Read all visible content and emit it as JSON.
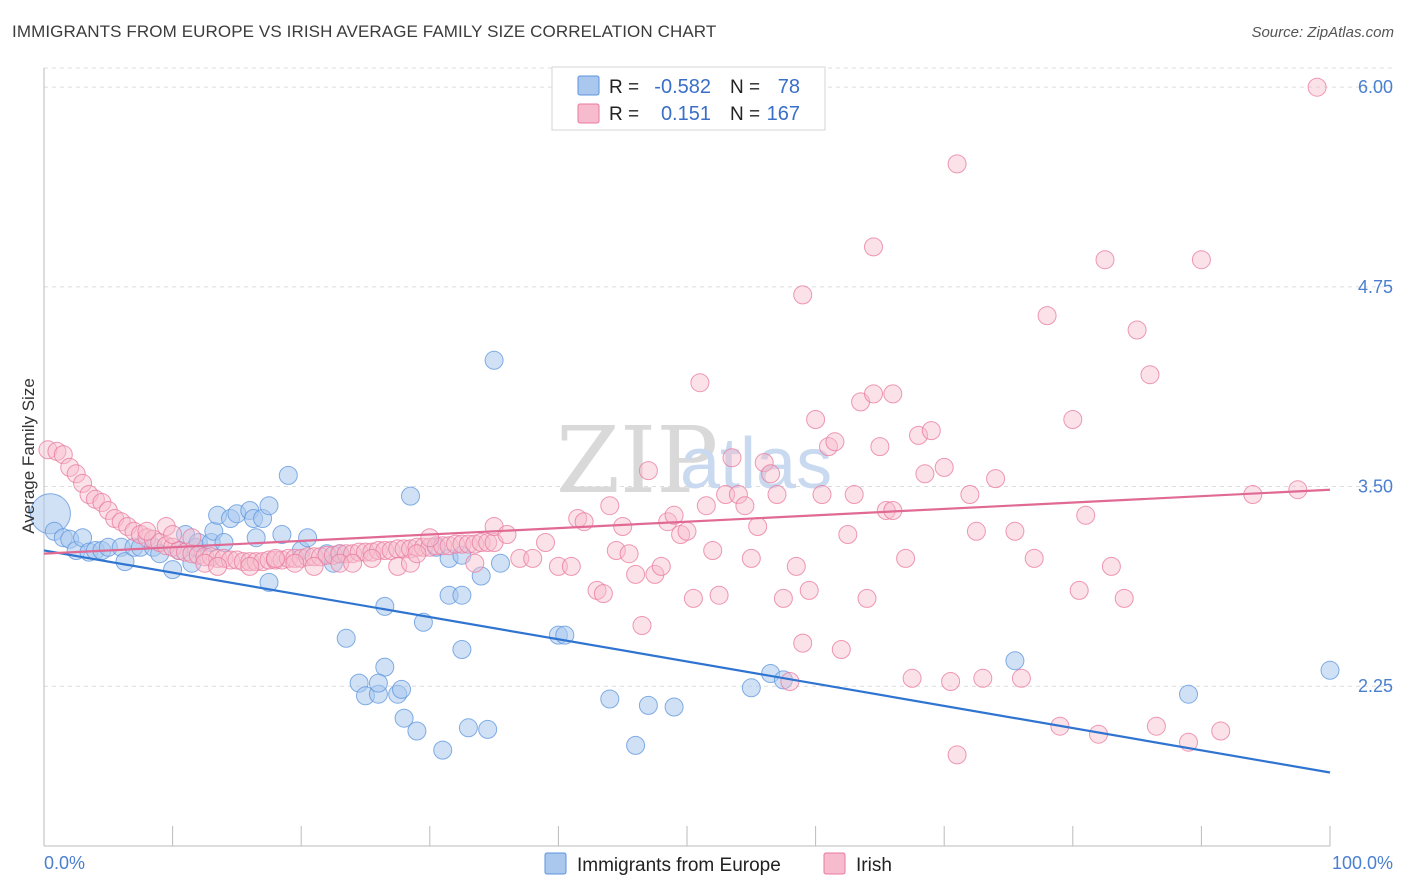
{
  "title": "IMMIGRANTS FROM EUROPE VS IRISH AVERAGE FAMILY SIZE CORRELATION CHART",
  "source": "Source: ZipAtlas.com",
  "watermark": {
    "zip": "ZIP",
    "atlas": "atlas"
  },
  "legend_top": [
    {
      "r_label": "R =",
      "r_value": "-0.582",
      "n_label": "N =",
      "n_value": "78",
      "color": "#8db5e8"
    },
    {
      "r_label": "R =",
      "r_value": "0.151",
      "n_label": "N =",
      "n_value": "167",
      "color": "#f4a9c0"
    }
  ],
  "chart_data": {
    "type": "scatter",
    "title": "IMMIGRANTS FROM EUROPE VS IRISH AVERAGE FAMILY SIZE CORRELATION CHART",
    "xlabel": "",
    "ylabel": "Average Family Size",
    "xlim": [
      0,
      100
    ],
    "ylim": [
      1.25,
      6.12
    ],
    "x_tick_labels": [
      "0.0%",
      "100.0%"
    ],
    "y_ticks": [
      2.25,
      3.5,
      4.75,
      6.0
    ],
    "y_tick_labels": [
      "2.25",
      "3.50",
      "4.75",
      "6.00"
    ],
    "grid": true,
    "legend_position": "bottom",
    "series": [
      {
        "name": "Immigrants from Europe",
        "color": "#5b94dc",
        "fill": "#aac8ee",
        "trend": {
          "x": [
            0,
            100
          ],
          "y": [
            3.1,
            1.71
          ]
        },
        "points": [
          [
            0.5,
            3.33
          ],
          [
            0.8,
            3.22
          ],
          [
            1.5,
            3.18
          ],
          [
            2.0,
            3.17
          ],
          [
            2.5,
            3.1
          ],
          [
            3.0,
            3.18
          ],
          [
            3.5,
            3.09
          ],
          [
            4.0,
            3.1
          ],
          [
            4.5,
            3.1
          ],
          [
            5.0,
            3.12
          ],
          [
            6.0,
            3.12
          ],
          [
            6.3,
            3.03
          ],
          [
            7.0,
            3.12
          ],
          [
            7.5,
            3.12
          ],
          [
            8.5,
            3.12
          ],
          [
            9.0,
            3.08
          ],
          [
            10.0,
            2.98
          ],
          [
            10.5,
            3.1
          ],
          [
            11.0,
            3.2
          ],
          [
            11.5,
            3.02
          ],
          [
            11.8,
            3.12
          ],
          [
            12.0,
            3.15
          ],
          [
            13.0,
            3.15
          ],
          [
            13.2,
            3.22
          ],
          [
            13.5,
            3.32
          ],
          [
            14.0,
            3.15
          ],
          [
            14.5,
            3.3
          ],
          [
            15.0,
            3.33
          ],
          [
            16.0,
            3.35
          ],
          [
            16.3,
            3.3
          ],
          [
            16.5,
            3.18
          ],
          [
            17.0,
            3.3
          ],
          [
            17.5,
            3.38
          ],
          [
            18.5,
            3.2
          ],
          [
            19.0,
            3.57
          ],
          [
            20.0,
            3.1
          ],
          [
            20.5,
            3.18
          ],
          [
            22.0,
            3.08
          ],
          [
            22.5,
            3.02
          ],
          [
            23.0,
            3.08
          ],
          [
            17.5,
            2.9
          ],
          [
            23.5,
            2.55
          ],
          [
            24.5,
            2.27
          ],
          [
            25.0,
            2.19
          ],
          [
            26.0,
            2.2
          ],
          [
            26.5,
            2.37
          ],
          [
            27.5,
            2.2
          ],
          [
            28.0,
            2.05
          ],
          [
            29.0,
            1.97
          ],
          [
            30.5,
            3.12
          ],
          [
            31.5,
            3.05
          ],
          [
            32.5,
            3.07
          ],
          [
            26.0,
            2.27
          ],
          [
            26.5,
            2.75
          ],
          [
            27.8,
            2.23
          ],
          [
            28.5,
            3.44
          ],
          [
            29.5,
            2.65
          ],
          [
            31.0,
            1.85
          ],
          [
            31.5,
            2.82
          ],
          [
            32.5,
            2.82
          ],
          [
            32.5,
            2.48
          ],
          [
            33.0,
            1.99
          ],
          [
            34.0,
            2.94
          ],
          [
            34.5,
            1.98
          ],
          [
            35.0,
            4.29
          ],
          [
            35.5,
            3.02
          ],
          [
            40.0,
            2.57
          ],
          [
            40.5,
            2.57
          ],
          [
            44.0,
            2.17
          ],
          [
            46.0,
            1.88
          ],
          [
            47.0,
            2.13
          ],
          [
            49.0,
            2.12
          ],
          [
            55.0,
            2.24
          ],
          [
            56.5,
            2.33
          ],
          [
            57.5,
            2.29
          ],
          [
            75.5,
            2.41
          ],
          [
            89.0,
            2.2
          ],
          [
            100.0,
            2.35
          ]
        ]
      },
      {
        "name": "Irish",
        "color": "#e8789e",
        "fill": "#f6bccd",
        "trend": {
          "x": [
            0,
            100
          ],
          "y": [
            3.08,
            3.48
          ]
        },
        "points": [
          [
            0.3,
            3.73
          ],
          [
            1.0,
            3.72
          ],
          [
            1.5,
            3.7
          ],
          [
            2.0,
            3.62
          ],
          [
            2.5,
            3.58
          ],
          [
            3.0,
            3.52
          ],
          [
            3.5,
            3.45
          ],
          [
            4.0,
            3.42
          ],
          [
            4.5,
            3.4
          ],
          [
            5.0,
            3.35
          ],
          [
            5.5,
            3.3
          ],
          [
            6.0,
            3.28
          ],
          [
            6.5,
            3.25
          ],
          [
            7.0,
            3.22
          ],
          [
            7.5,
            3.2
          ],
          [
            8.0,
            3.18
          ],
          [
            8.5,
            3.17
          ],
          [
            9.0,
            3.15
          ],
          [
            9.5,
            3.13
          ],
          [
            10.0,
            3.12
          ],
          [
            10.5,
            3.1
          ],
          [
            11.0,
            3.09
          ],
          [
            11.5,
            3.08
          ],
          [
            12.0,
            3.07
          ],
          [
            12.5,
            3.06
          ],
          [
            13.0,
            3.06
          ],
          [
            13.5,
            3.05
          ],
          [
            14.0,
            3.05
          ],
          [
            14.5,
            3.04
          ],
          [
            15.0,
            3.04
          ],
          [
            15.5,
            3.03
          ],
          [
            16.0,
            3.03
          ],
          [
            16.5,
            3.03
          ],
          [
            17.0,
            3.03
          ],
          [
            17.5,
            3.04
          ],
          [
            18.0,
            3.04
          ],
          [
            18.5,
            3.04
          ],
          [
            19.0,
            3.05
          ],
          [
            19.5,
            3.05
          ],
          [
            20.0,
            3.05
          ],
          [
            20.5,
            3.06
          ],
          [
            21.0,
            3.06
          ],
          [
            21.5,
            3.06
          ],
          [
            22.0,
            3.07
          ],
          [
            22.5,
            3.07
          ],
          [
            23.0,
            3.08
          ],
          [
            23.5,
            3.08
          ],
          [
            24.0,
            3.08
          ],
          [
            24.5,
            3.09
          ],
          [
            25.0,
            3.09
          ],
          [
            25.5,
            3.09
          ],
          [
            26.0,
            3.1
          ],
          [
            26.5,
            3.1
          ],
          [
            27.0,
            3.1
          ],
          [
            27.5,
            3.11
          ],
          [
            28.0,
            3.11
          ],
          [
            28.5,
            3.11
          ],
          [
            29.0,
            3.12
          ],
          [
            29.5,
            3.12
          ],
          [
            30.0,
            3.12
          ],
          [
            30.5,
            3.13
          ],
          [
            31.0,
            3.13
          ],
          [
            31.5,
            3.13
          ],
          [
            32.0,
            3.14
          ],
          [
            32.5,
            3.14
          ],
          [
            33.0,
            3.14
          ],
          [
            33.5,
            3.14
          ],
          [
            34.0,
            3.15
          ],
          [
            34.5,
            3.15
          ],
          [
            35.0,
            3.15
          ],
          [
            8.0,
            3.22
          ],
          [
            9.5,
            3.25
          ],
          [
            10.0,
            3.2
          ],
          [
            11.5,
            3.18
          ],
          [
            12.5,
            3.02
          ],
          [
            13.5,
            3.0
          ],
          [
            16.0,
            3.0
          ],
          [
            18.0,
            3.05
          ],
          [
            19.5,
            3.02
          ],
          [
            21.0,
            3.0
          ],
          [
            23.0,
            3.02
          ],
          [
            24.0,
            3.02
          ],
          [
            25.5,
            3.05
          ],
          [
            27.5,
            3.0
          ],
          [
            28.5,
            3.02
          ],
          [
            29.0,
            3.08
          ],
          [
            30.0,
            3.18
          ],
          [
            33.5,
            3.02
          ],
          [
            35.0,
            3.25
          ],
          [
            36.0,
            3.2
          ],
          [
            37.0,
            3.05
          ],
          [
            38.0,
            3.05
          ],
          [
            39.0,
            3.15
          ],
          [
            40.0,
            3.0
          ],
          [
            41.0,
            3.0
          ],
          [
            41.5,
            3.3
          ],
          [
            42.0,
            3.28
          ],
          [
            43.0,
            2.85
          ],
          [
            43.5,
            2.83
          ],
          [
            44.0,
            3.38
          ],
          [
            44.5,
            3.1
          ],
          [
            45.0,
            3.25
          ],
          [
            45.5,
            3.08
          ],
          [
            46.0,
            2.95
          ],
          [
            46.5,
            2.63
          ],
          [
            47.0,
            3.6
          ],
          [
            47.5,
            2.95
          ],
          [
            48.0,
            3.0
          ],
          [
            48.5,
            3.28
          ],
          [
            49.0,
            3.32
          ],
          [
            49.5,
            3.2
          ],
          [
            50.0,
            3.22
          ],
          [
            50.5,
            2.8
          ],
          [
            51.0,
            4.15
          ],
          [
            51.5,
            3.38
          ],
          [
            52.0,
            3.1
          ],
          [
            52.5,
            2.82
          ],
          [
            53.0,
            3.45
          ],
          [
            53.5,
            3.68
          ],
          [
            54.0,
            3.45
          ],
          [
            54.5,
            3.38
          ],
          [
            55.0,
            3.05
          ],
          [
            55.5,
            3.25
          ],
          [
            56.0,
            3.65
          ],
          [
            56.5,
            3.58
          ],
          [
            57.0,
            3.45
          ],
          [
            57.5,
            2.8
          ],
          [
            58.0,
            2.28
          ],
          [
            58.5,
            3.0
          ],
          [
            59.0,
            2.52
          ],
          [
            59.5,
            2.85
          ],
          [
            60.0,
            3.92
          ],
          [
            60.5,
            3.45
          ],
          [
            61.0,
            3.75
          ],
          [
            61.5,
            3.78
          ],
          [
            62.0,
            2.48
          ],
          [
            62.5,
            3.2
          ],
          [
            63.0,
            3.45
          ],
          [
            63.5,
            4.03
          ],
          [
            64.0,
            2.8
          ],
          [
            64.5,
            4.08
          ],
          [
            65.0,
            3.75
          ],
          [
            65.5,
            3.35
          ],
          [
            66.0,
            3.35
          ],
          [
            67.0,
            3.05
          ],
          [
            67.5,
            2.3
          ],
          [
            68.0,
            3.82
          ],
          [
            68.5,
            3.58
          ],
          [
            69.0,
            3.85
          ],
          [
            70.0,
            3.62
          ],
          [
            70.5,
            2.28
          ],
          [
            71.0,
            1.82
          ],
          [
            72.0,
            3.45
          ],
          [
            72.5,
            3.22
          ],
          [
            73.0,
            2.3
          ],
          [
            74.0,
            3.55
          ],
          [
            75.5,
            3.22
          ],
          [
            76.0,
            2.3
          ],
          [
            77.0,
            3.05
          ],
          [
            78.0,
            4.57
          ],
          [
            79.0,
            2.0
          ],
          [
            80.0,
            3.92
          ],
          [
            80.5,
            2.85
          ],
          [
            81.0,
            3.32
          ],
          [
            82.0,
            1.95
          ],
          [
            83.0,
            3.0
          ],
          [
            84.0,
            2.8
          ],
          [
            85.0,
            4.48
          ],
          [
            86.0,
            4.2
          ],
          [
            86.5,
            2.0
          ],
          [
            89.0,
            1.9
          ],
          [
            90.0,
            4.92
          ],
          [
            91.5,
            1.97
          ],
          [
            94.0,
            3.45
          ],
          [
            97.5,
            3.48
          ],
          [
            99.0,
            6.0
          ],
          [
            71.0,
            5.52
          ],
          [
            64.5,
            5.0
          ],
          [
            59.0,
            4.7
          ],
          [
            82.5,
            4.92
          ],
          [
            66.0,
            4.08
          ]
        ]
      }
    ]
  },
  "legend_bottom": [
    {
      "label": "Immigrants from Europe",
      "color": "#aac8ee",
      "stroke": "#5b94dc"
    },
    {
      "label": "Irish",
      "color": "#f6bccd",
      "stroke": "#e8789e"
    }
  ]
}
